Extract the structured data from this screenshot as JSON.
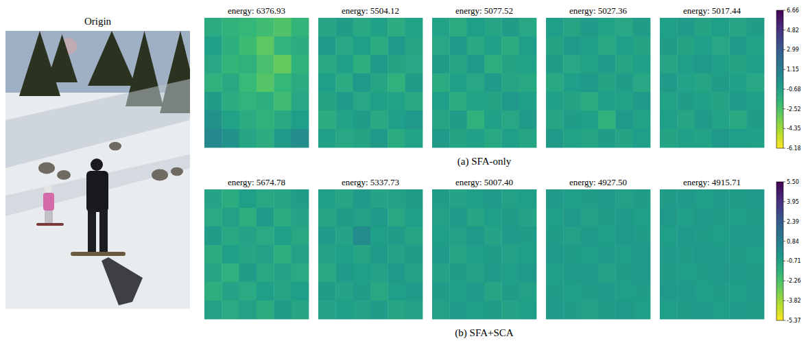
{
  "image": {
    "title": "Origin"
  },
  "chart_data": [
    {
      "type": "heatmap",
      "caption": "(a) SFA-only",
      "zlim": [
        -6.18,
        6.66
      ],
      "zticks": [
        6.66,
        4.82,
        2.99,
        1.15,
        -0.68,
        -2.52,
        -4.35,
        -6.18
      ],
      "panels": [
        {
          "title": "energy: 6376.93",
          "cells": [
            [
              -1.2,
              -1.6,
              -1.9,
              -2.2,
              -2.6,
              -1.8
            ],
            [
              -0.6,
              -1.4,
              -2.1,
              -2.9,
              -1.7,
              -1.3
            ],
            [
              -1.0,
              -1.8,
              -1.5,
              -2.4,
              -3.1,
              -1.6
            ],
            [
              -1.5,
              -1.1,
              -2.0,
              -2.7,
              -1.9,
              -1.2
            ],
            [
              -0.4,
              -1.3,
              -1.7,
              -1.4,
              -2.2,
              -1.0
            ],
            [
              0.2,
              -0.7,
              -1.2,
              -1.6,
              -1.1,
              -0.5
            ],
            [
              0.6,
              0.1,
              -0.9,
              -1.3,
              -0.3,
              0.4
            ]
          ]
        },
        {
          "title": "energy: 5504.12",
          "cells": [
            [
              -0.9,
              -0.4,
              -1.1,
              -0.6,
              -1.3,
              -0.7
            ],
            [
              -0.3,
              -1.0,
              -0.5,
              -1.2,
              -0.2,
              -0.9
            ],
            [
              -1.1,
              -0.6,
              -1.4,
              -0.3,
              -0.8,
              -1.0
            ],
            [
              -0.5,
              -1.2,
              -0.2,
              -0.9,
              -1.5,
              -0.4
            ],
            [
              -0.8,
              -0.3,
              -1.0,
              -0.6,
              -0.7,
              -1.1
            ],
            [
              -1.3,
              -0.7,
              -0.4,
              -1.1,
              -0.5,
              -0.2
            ],
            [
              -0.6,
              -1.0,
              -0.8,
              -0.3,
              -1.2,
              -0.7
            ]
          ]
        },
        {
          "title": "energy: 5077.52",
          "cells": [
            [
              -0.7,
              -1.2,
              -0.5,
              -0.9,
              -0.4,
              -1.0
            ],
            [
              -1.0,
              -0.3,
              -1.1,
              -0.6,
              -1.3,
              -0.5
            ],
            [
              -0.4,
              -0.9,
              -0.2,
              -1.4,
              -0.8,
              -0.7
            ],
            [
              -1.2,
              -0.6,
              -1.0,
              -0.3,
              -0.9,
              -1.1
            ],
            [
              -0.5,
              -1.3,
              -0.7,
              -0.8,
              -0.2,
              -0.6
            ],
            [
              -0.9,
              -0.4,
              -1.5,
              -0.6,
              -1.0,
              -0.3
            ],
            [
              -0.3,
              -0.8,
              -0.6,
              -1.1,
              -0.5,
              -0.9
            ]
          ]
        },
        {
          "title": "energy: 5027.36",
          "cells": [
            [
              -0.5,
              -0.9,
              -0.3,
              -0.7,
              -1.0,
              -0.4
            ],
            [
              -0.8,
              -0.2,
              -0.6,
              -1.1,
              -0.5,
              -0.8
            ],
            [
              -0.4,
              -1.0,
              -0.7,
              -0.3,
              -0.9,
              -0.6
            ],
            [
              -1.1,
              -0.5,
              -0.2,
              -0.8,
              -0.4,
              -1.0
            ],
            [
              -0.6,
              -0.8,
              -1.2,
              -0.5,
              -0.7,
              -0.3
            ],
            [
              -0.9,
              -0.4,
              -0.6,
              -1.6,
              -0.2,
              -0.7
            ],
            [
              -0.3,
              -0.7,
              -0.9,
              -0.4,
              -0.8,
              -0.5
            ]
          ]
        },
        {
          "title": "energy: 5017.44",
          "cells": [
            [
              -0.6,
              -0.3,
              -0.8,
              -0.5,
              -0.9,
              -0.4
            ],
            [
              -0.4,
              -0.8,
              -0.5,
              -1.0,
              -0.3,
              -0.7
            ],
            [
              -0.9,
              -0.5,
              -0.2,
              -0.6,
              -0.8,
              -0.5
            ],
            [
              -0.3,
              -0.7,
              -0.9,
              -0.4,
              -0.6,
              -1.0
            ],
            [
              -0.7,
              -0.4,
              -0.6,
              -0.8,
              -0.3,
              -0.5
            ],
            [
              -0.5,
              -0.9,
              -0.3,
              -0.7,
              -1.1,
              -0.4
            ],
            [
              -0.8,
              -0.6,
              -0.7,
              -0.2,
              -0.5,
              -0.6
            ]
          ]
        }
      ]
    },
    {
      "type": "heatmap",
      "caption": "(b) SFA+SCA",
      "zlim": [
        -5.37,
        5.5
      ],
      "zticks": [
        {
          "value": 5.5,
          "label": "5.50"
        },
        3.95,
        2.39,
        0.84,
        -0.71,
        -2.26,
        -3.82,
        -5.37
      ],
      "panels": [
        {
          "title": "energy: 5674.78",
          "cells": [
            [
              -0.8,
              -1.2,
              -0.6,
              -1.0,
              -0.9,
              -0.5
            ],
            [
              -1.1,
              -0.7,
              -1.3,
              -0.4,
              -1.2,
              -0.8
            ],
            [
              -0.5,
              -1.0,
              -0.8,
              -1.1,
              -0.6,
              -1.0
            ],
            [
              -1.2,
              -0.6,
              -0.9,
              -0.7,
              -1.3,
              -0.7
            ],
            [
              -0.9,
              -1.4,
              -0.5,
              -1.0,
              -0.8,
              -1.1
            ],
            [
              -1.3,
              -0.8,
              -1.1,
              -0.6,
              -0.9,
              -0.6
            ],
            [
              -0.7,
              -1.1,
              -0.7,
              -1.2,
              -0.5,
              -0.9
            ]
          ]
        },
        {
          "title": "energy: 5337.73",
          "cells": [
            [
              -0.6,
              -0.9,
              -0.4,
              -0.8,
              -0.7,
              -0.5
            ],
            [
              -0.9,
              -0.5,
              -0.7,
              -0.3,
              -1.0,
              -0.6
            ],
            [
              -0.4,
              -0.8,
              0.3,
              -0.6,
              -0.5,
              -0.9
            ],
            [
              -0.7,
              -0.6,
              -0.9,
              -0.4,
              -0.8,
              -0.5
            ],
            [
              -1.0,
              -0.4,
              -0.6,
              -0.7,
              -0.3,
              -0.8
            ],
            [
              -0.5,
              -0.8,
              -0.5,
              -1.0,
              -0.6,
              -0.4
            ],
            [
              -0.8,
              -0.6,
              -0.8,
              -0.5,
              -0.9,
              -0.7
            ]
          ]
        },
        {
          "title": "energy: 5007.40",
          "cells": [
            [
              -0.5,
              -0.8,
              -0.6,
              -0.4,
              -0.7,
              -0.6
            ],
            [
              -0.7,
              -0.4,
              -0.9,
              -0.6,
              -0.5,
              -0.8
            ],
            [
              -0.6,
              -0.7,
              -0.3,
              -0.8,
              -0.4,
              -0.5
            ],
            [
              -0.4,
              -0.9,
              -0.6,
              -0.5,
              -0.7,
              -0.6
            ],
            [
              -0.8,
              -0.5,
              -0.7,
              -0.4,
              -0.6,
              -0.3
            ],
            [
              -0.5,
              -0.6,
              -0.4,
              -0.9,
              -0.5,
              -0.7
            ],
            [
              -0.7,
              -0.4,
              -0.6,
              -0.5,
              -0.8,
              -0.6
            ]
          ]
        },
        {
          "title": "energy: 4927.50",
          "cells": [
            [
              -0.4,
              -0.6,
              -0.5,
              -0.3,
              -0.7,
              -0.5
            ],
            [
              -0.6,
              -0.3,
              -0.7,
              -0.5,
              -0.4,
              -0.6
            ],
            [
              -0.5,
              -0.7,
              -0.4,
              -0.6,
              -0.3,
              -0.5
            ],
            [
              -0.3,
              -0.5,
              -0.6,
              -0.4,
              -0.6,
              -0.4
            ],
            [
              -0.6,
              -0.4,
              -0.3,
              -0.7,
              -0.5,
              -0.3
            ],
            [
              -0.5,
              -0.6,
              -0.5,
              -0.4,
              -0.6,
              -0.5
            ],
            [
              -0.4,
              -0.5,
              -0.7,
              -0.5,
              -0.3,
              -0.6
            ]
          ]
        },
        {
          "title": "energy: 4915.71",
          "cells": [
            [
              -0.5,
              -0.4,
              -0.6,
              -0.4,
              -0.5,
              -0.3
            ],
            [
              -0.3,
              -0.6,
              -0.4,
              -0.5,
              -0.6,
              -0.5
            ],
            [
              -0.6,
              -0.3,
              -0.5,
              -0.6,
              -0.4,
              -0.4
            ],
            [
              -0.4,
              -0.5,
              -0.3,
              -0.4,
              -0.5,
              -0.6
            ],
            [
              -0.5,
              -0.6,
              -0.5,
              -0.3,
              -0.4,
              -0.5
            ],
            [
              -0.3,
              -0.4,
              -0.6,
              -0.5,
              -0.6,
              -0.3
            ],
            [
              -0.6,
              -0.5,
              -0.4,
              -0.6,
              -0.4,
              -0.5
            ]
          ]
        }
      ]
    }
  ]
}
